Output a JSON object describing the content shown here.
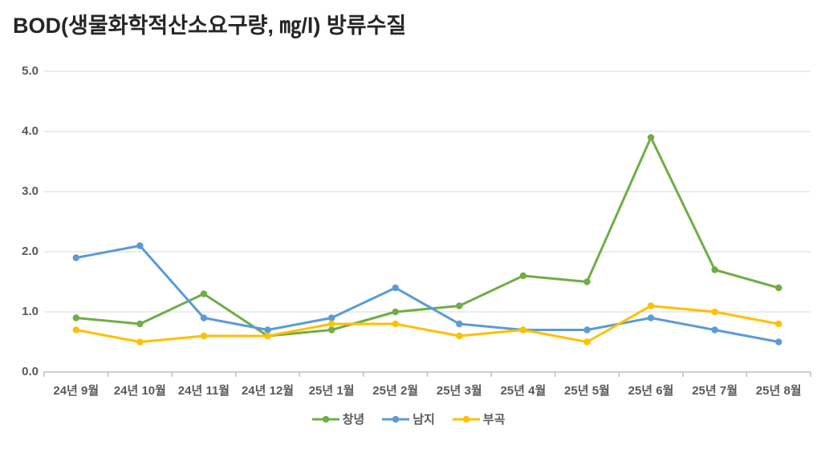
{
  "chart_data": {
    "type": "line",
    "title": "BOD(생물화학적산소요구량, ㎎/l) 방류수질",
    "categories": [
      "24년 9월",
      "24년 10월",
      "24년 11월",
      "24년 12월",
      "25년 1월",
      "25년 2월",
      "25년 3월",
      "25년 4월",
      "25년 5월",
      "25년 6월",
      "25년 7월",
      "25년 8월"
    ],
    "series": [
      {
        "name": "창녕",
        "color": "#70AD47",
        "values": [
          0.9,
          0.8,
          1.3,
          0.6,
          0.7,
          1.0,
          1.1,
          1.6,
          1.5,
          3.9,
          1.7,
          1.4
        ]
      },
      {
        "name": "남지",
        "color": "#5B9BD5",
        "values": [
          1.9,
          2.1,
          0.9,
          0.7,
          0.9,
          1.4,
          0.8,
          0.7,
          0.7,
          0.9,
          0.7,
          0.5
        ]
      },
      {
        "name": "부곡",
        "color": "#FFC000",
        "values": [
          0.7,
          0.5,
          0.6,
          0.6,
          0.8,
          0.8,
          0.6,
          0.7,
          0.5,
          1.1,
          1.0,
          0.8
        ]
      }
    ],
    "ylim": [
      0.0,
      5.0
    ],
    "ytick_labels": [
      "0.0",
      "1.0",
      "2.0",
      "3.0",
      "4.0",
      "5.0"
    ],
    "grid": true,
    "legend_position": "bottom",
    "colors": {
      "gridline": "#D9D9D9",
      "axis_line": "#BFBFBF",
      "tick_label": "#595959",
      "title": "#262626",
      "background": "#FFFFFF"
    }
  }
}
